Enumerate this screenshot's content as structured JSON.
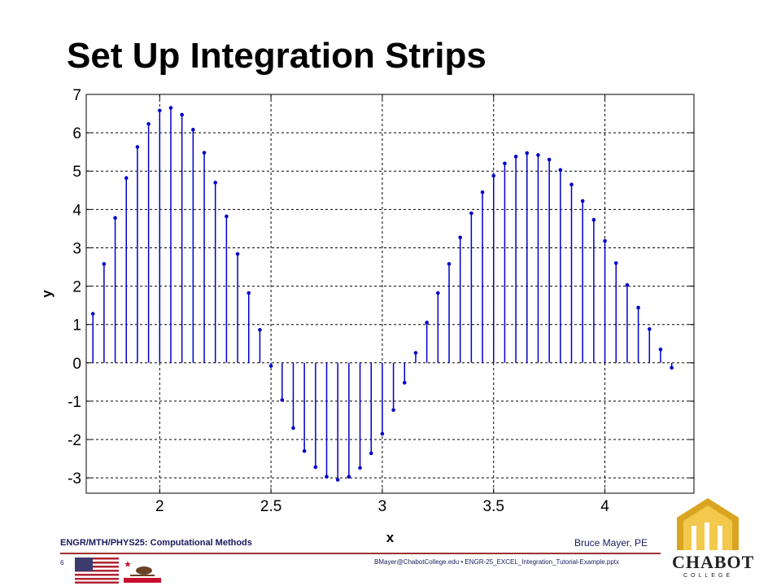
{
  "slide": {
    "title": "Set Up Integration Strips",
    "footer": {
      "course": "ENGR/MTH/PHYS25: Computational Methods",
      "author": "Bruce Mayer, PE",
      "page": "6",
      "file": "BMayer@ChabotCollege.edu  •  ENGR-25_EXCEL_Integration_Tutorial-Example.pptx"
    },
    "logo": {
      "name": "CHABOT",
      "sub": "COLLEGE"
    },
    "colors": {
      "stem": "#0000cc",
      "grid": "#000000",
      "footer_text": "#1a1a5e",
      "footer_rule": "#a03030",
      "logo_gold": "#d9a520"
    }
  },
  "chart_data": {
    "type": "stem",
    "xlabel": "x",
    "ylabel": "y",
    "xlim": [
      1.67,
      4.4
    ],
    "ylim": [
      -3.4,
      7
    ],
    "xticks": [
      2,
      2.5,
      3,
      3.5,
      4
    ],
    "xtick_labels": [
      "2",
      "2.5",
      "3",
      "3.5",
      "4"
    ],
    "yticks": [
      -3,
      -2,
      -1,
      0,
      1,
      2,
      3,
      4,
      5,
      6,
      7
    ],
    "ytick_labels": [
      "-3",
      "-2",
      "-1",
      "0",
      "1",
      "2",
      "3",
      "4",
      "5",
      "6",
      "7"
    ],
    "grid": true,
    "series": [
      {
        "x": [
          1.7,
          1.75,
          1.8,
          1.85,
          1.9,
          1.95,
          2.0,
          2.05,
          2.1,
          2.15,
          2.2,
          2.25,
          2.3,
          2.35,
          2.4,
          2.45,
          2.5,
          2.55,
          2.6,
          2.65,
          2.7,
          2.75,
          2.8,
          2.85,
          2.9,
          2.95,
          3.0,
          3.05,
          3.1,
          3.15,
          3.2,
          3.25,
          3.3,
          3.35,
          3.4,
          3.45,
          3.5,
          3.55,
          3.6,
          3.65,
          3.7,
          3.75,
          3.8,
          3.85,
          3.9,
          3.95,
          4.0,
          4.05,
          4.1,
          4.15,
          4.2,
          4.25,
          4.3
        ],
        "y": [
          1.28,
          2.58,
          3.78,
          4.82,
          5.63,
          6.23,
          6.58,
          6.65,
          6.47,
          6.08,
          5.48,
          4.7,
          3.82,
          2.84,
          1.82,
          0.86,
          -0.08,
          -0.97,
          -1.7,
          -2.3,
          -2.72,
          -2.97,
          -3.05,
          -2.97,
          -2.74,
          -2.36,
          -1.85,
          -1.23,
          -0.52,
          0.26,
          1.05,
          1.82,
          2.58,
          3.27,
          3.9,
          4.45,
          4.88,
          5.2,
          5.38,
          5.47,
          5.42,
          5.3,
          5.03,
          4.65,
          4.22,
          3.73,
          3.18,
          2.6,
          2.03,
          1.44,
          0.88,
          0.35,
          -0.13
        ]
      }
    ]
  }
}
